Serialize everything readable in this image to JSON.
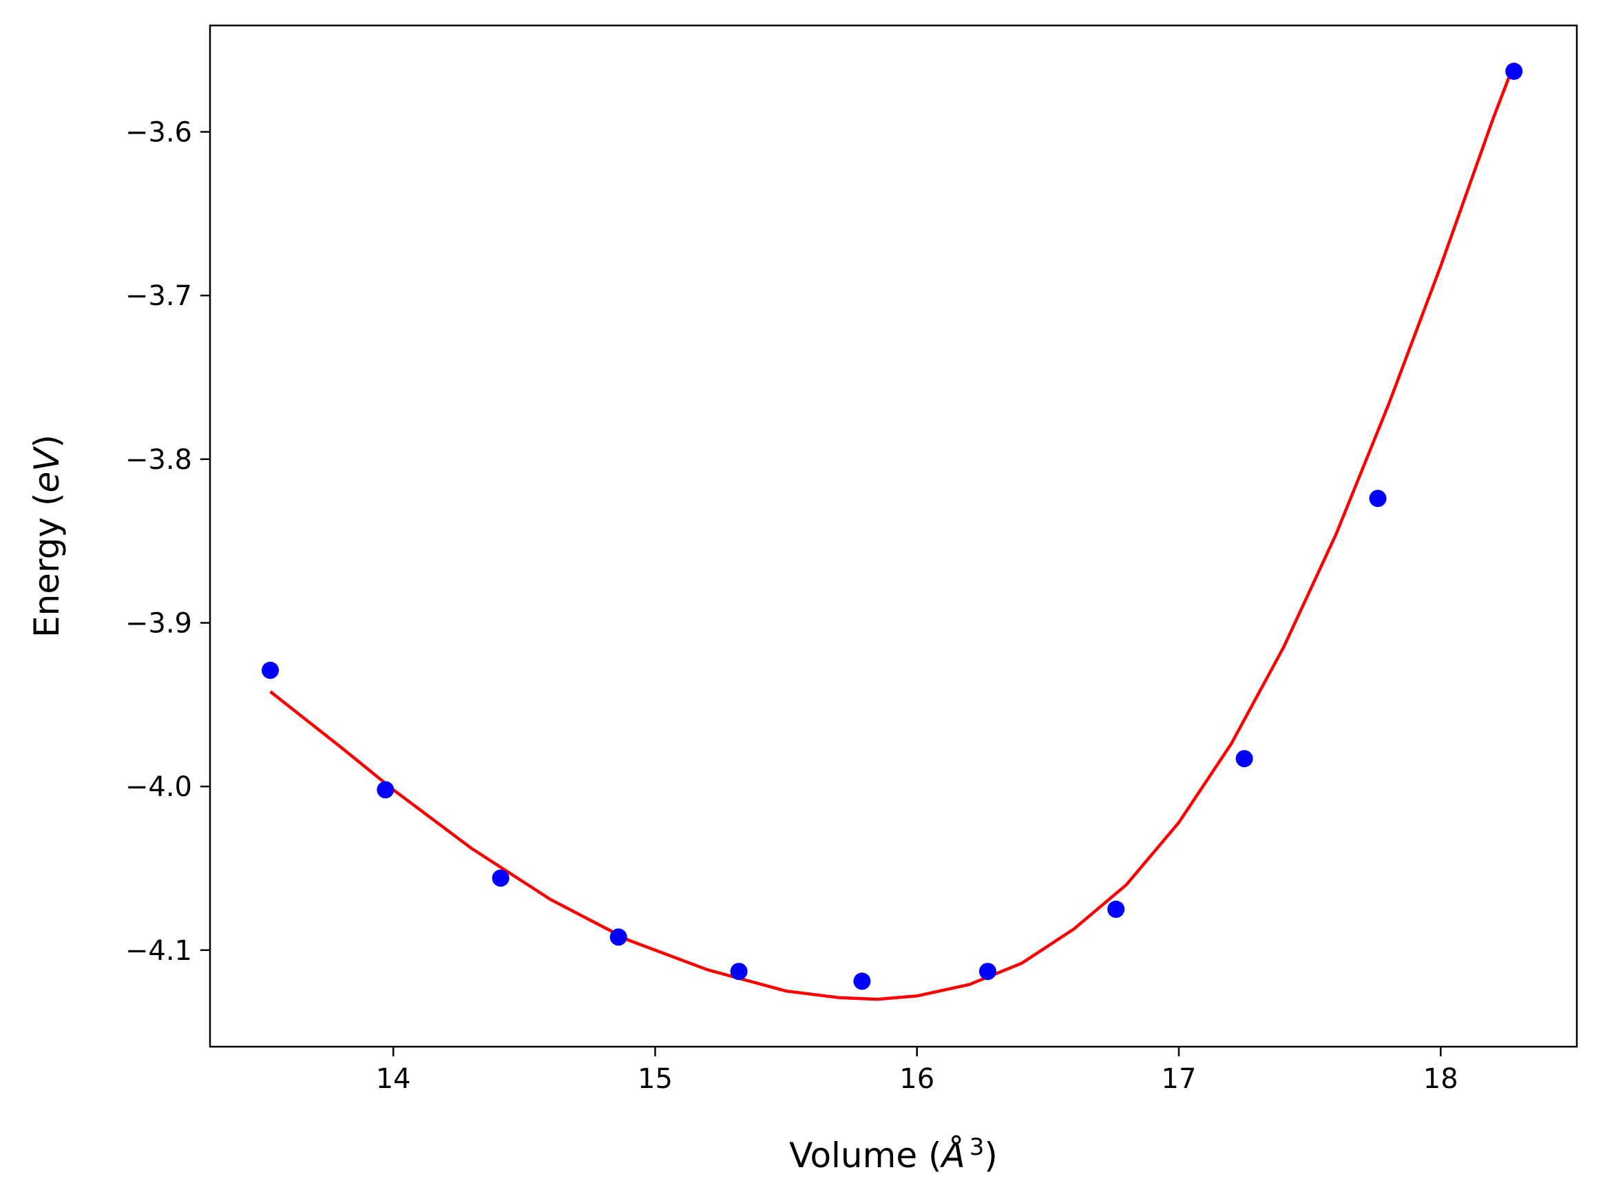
{
  "chart_data": {
    "type": "scatter",
    "title": "",
    "xlabel_parts": {
      "prefix": "Volume (",
      "symbol": "Å",
      "exponent": "3",
      "suffix": ")"
    },
    "ylabel_parts": {
      "prefix": "Energy (",
      "unit": "eV",
      "suffix": ")"
    },
    "xlim": [
      13.3,
      18.52
    ],
    "ylim": [
      -4.159,
      -3.535
    ],
    "xticks": [
      14,
      15,
      16,
      17,
      18
    ],
    "xtick_labels": [
      "14",
      "15",
      "16",
      "17",
      "18"
    ],
    "yticks": [
      -3.6,
      -3.7,
      -3.8,
      -3.9,
      -4.0,
      -4.1
    ],
    "ytick_labels": [
      "−3.6",
      "−3.7",
      "−3.8",
      "−3.9",
      "−4.0",
      "−4.1"
    ],
    "grid": false,
    "series": [
      {
        "kind": "points",
        "color": "#0000ff",
        "x": [
          13.53,
          13.97,
          14.41,
          14.86,
          15.32,
          15.79,
          16.27,
          16.76,
          17.25,
          17.76,
          18.28
        ],
        "y": [
          -3.929,
          -4.002,
          -4.056,
          -4.092,
          -4.113,
          -4.119,
          -4.113,
          -4.075,
          -3.983,
          -3.824,
          -3.563
        ]
      },
      {
        "kind": "fit-curve",
        "color": "#ff0000",
        "x": [
          13.53,
          13.8,
          14.0,
          14.3,
          14.6,
          14.9,
          15.2,
          15.5,
          15.7,
          15.85,
          16.0,
          16.2,
          16.4,
          16.6,
          16.8,
          17.0,
          17.2,
          17.4,
          17.6,
          17.8,
          18.0,
          18.1,
          18.2,
          18.26
        ],
        "y": [
          -3.942,
          -3.976,
          -4.002,
          -4.038,
          -4.069,
          -4.094,
          -4.112,
          -4.125,
          -4.129,
          -4.13,
          -4.128,
          -4.121,
          -4.108,
          -4.087,
          -4.06,
          -4.022,
          -3.974,
          -3.915,
          -3.846,
          -3.767,
          -3.682,
          -3.637,
          -3.592,
          -3.567
        ]
      }
    ]
  }
}
